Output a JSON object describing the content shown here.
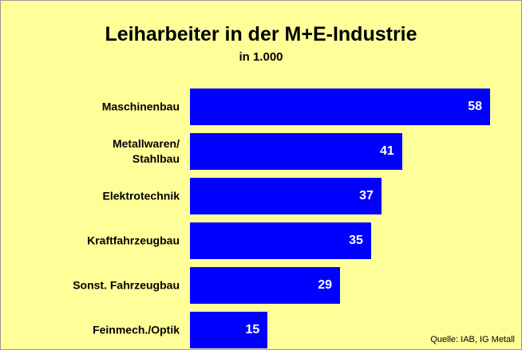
{
  "chart_data": {
    "type": "bar",
    "orientation": "horizontal",
    "title": "Leiharbeiter in der M+E-Industrie",
    "subtitle": "in 1.000",
    "categories": [
      "Maschinenbau",
      "Metallwaren/\nStahlbau",
      "Elektrotechnik",
      "Kraftfahrzeugbau",
      "Sonst. Fahrzeugbau",
      "Feinmech./Optik"
    ],
    "values": [
      58,
      41,
      37,
      35,
      29,
      15
    ],
    "color": "#0000ff",
    "source": "Quelle: IAB, IG Metall"
  }
}
